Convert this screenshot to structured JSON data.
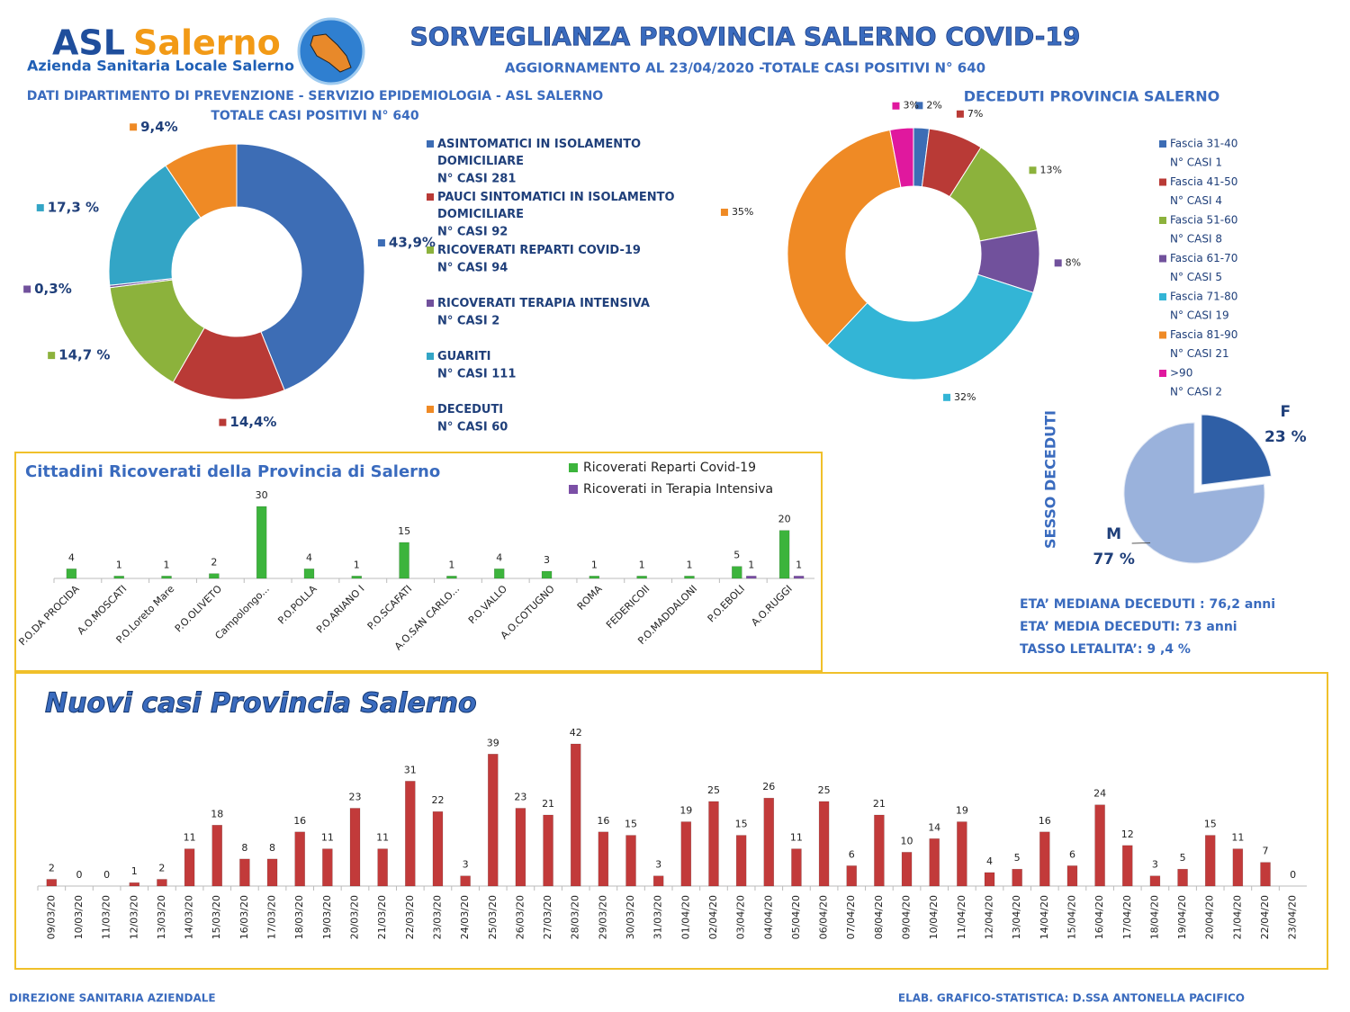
{
  "header": {
    "logo": [
      "ASL",
      "Salerno"
    ],
    "logo_subtitle": "Azienda Sanitaria Locale Salerno",
    "title": "SORVEGLIANZA PROVINCIA SALERNO COVID-19",
    "subtitle": "AGGIORNAMENTO AL 23/04/2020 -TOTALE CASI  POSITIVI N° 640"
  },
  "chart_data": [
    {
      "type": "donut",
      "title": "DATI DIPARTIMENTO DI PREVENZIONE - SERVIZIO EPIDEMIOLOGIA  - ASL SALERNO",
      "subtitle": "TOTALE CASI  POSITIVI N°  640",
      "categories": [
        "ASINTOMATICI  IN ISOLAMENTO DOMICILIARE",
        "PAUCI SINTOMATICI IN ISOLAMENTO DOMICILIARE",
        "RICOVERATI REPARTI COVID-19",
        "RICOVERATI  TERAPIA INTENSIVA",
        "GUARITI",
        "DECEDUTI"
      ],
      "case_labels": [
        "N° CASI 281",
        "N° CASI 92",
        "N° CASI 94",
        "N° CASI 2",
        "N° CASI 111",
        "N° CASI 60"
      ],
      "values": [
        43.9,
        14.4,
        14.7,
        0.3,
        17.3,
        9.4
      ],
      "value_labels": [
        "43,9%",
        "14,4%",
        "14,7 %",
        "0,3%",
        "17,3 %",
        "9,4%"
      ],
      "colors": [
        "#3d6db5",
        "#b93a36",
        "#8cb23c",
        "#71519c",
        "#33a5c6",
        "#ef8a25"
      ]
    },
    {
      "type": "donut",
      "title": "DECEDUTI PROVINCIA SALERNO",
      "categories": [
        "Fascia 31-40",
        "Fascia 41-50",
        "Fascia 51-60",
        "Fascia 61-70",
        "Fascia 71-80",
        "Fascia 81-90",
        ">90"
      ],
      "case_labels": [
        "N° CASI 1",
        "N° CASI  4",
        "N° CASI  8",
        "N° CASI  5",
        "N° CASI  19",
        "N° CASI  21",
        "N° CASI  2"
      ],
      "values": [
        2,
        7,
        13,
        8,
        32,
        35,
        3
      ],
      "value_labels": [
        "2%",
        "7%",
        "13%",
        "8%",
        "32%",
        "35%",
        "3%"
      ],
      "colors": [
        "#3d6db5",
        "#b93a36",
        "#8cb23c",
        "#71519c",
        "#33b5d6",
        "#ef8a25",
        "#e0189e"
      ]
    },
    {
      "type": "pie",
      "title": "SESSO DECEDUTI",
      "categories": [
        "F",
        "M"
      ],
      "values": [
        23,
        77
      ],
      "value_labels": [
        "23 %",
        "77 %"
      ],
      "colors": [
        "#2f5fa6",
        "#9ab2dc"
      ]
    },
    {
      "type": "bar",
      "title": "Cittadini Ricoverati della Provincia di Salerno",
      "categories": [
        "P.O.DA PROCIDA",
        "A.O.MOSCATI",
        "P.O.Loreto Mare",
        "P.O.OLIVETO",
        "Campolongo...",
        "P.O.POLLA",
        "P.O.ARIANO I",
        "P.O.SCAFATI",
        "A.O.SAN CARLO...",
        "P.O.VALLO",
        "A.O.COTUGNO",
        "ROMA",
        "FEDERICOII",
        "P.O.MADDALONI",
        "P.O.EBOLI",
        "A.O.RUGGI"
      ],
      "series": [
        {
          "name": "Ricoverati Reparti Covid-19",
          "color": "#3cb43c",
          "values": [
            4,
            1,
            1,
            2,
            30,
            4,
            1,
            15,
            1,
            4,
            3,
            1,
            1,
            1,
            5,
            20
          ]
        },
        {
          "name": "Ricoverati in Terapia Intensiva",
          "color": "#7b4fa6",
          "values": [
            null,
            null,
            null,
            null,
            null,
            null,
            null,
            null,
            null,
            null,
            null,
            null,
            null,
            null,
            1,
            1
          ]
        }
      ]
    },
    {
      "type": "bar",
      "title": "Nuovi casi Provincia Salerno",
      "color": "#c23a3a",
      "categories": [
        "09/03/20",
        "10/03/20",
        "11/03/20",
        "12/03/20",
        "13/03/20",
        "14/03/20",
        "15/03/20",
        "16/03/20",
        "17/03/20",
        "18/03/20",
        "19/03/20",
        "20/03/20",
        "21/03/20",
        "22/03/20",
        "23/03/20",
        "24/03/20",
        "25/03/20",
        "26/03/20",
        "27/03/20",
        "28/03/20",
        "29/03/20",
        "30/03/20",
        "31/03/20",
        "01/04/20",
        "02/04/20",
        "03/04/20",
        "04/04/20",
        "05/04/20",
        "06/04/20",
        "07/04/20",
        "08/04/20",
        "09/04/20",
        "10/04/20",
        "11/04/20",
        "12/04/20",
        "13/04/20",
        "14/04/20",
        "15/04/20",
        "16/04/20",
        "17/04/20",
        "18/04/20",
        "19/04/20",
        "20/04/20",
        "21/04/20",
        "22/04/20",
        "23/04/20"
      ],
      "values": [
        2,
        0,
        0,
        1,
        2,
        11,
        18,
        8,
        8,
        16,
        11,
        23,
        11,
        31,
        22,
        3,
        39,
        23,
        21,
        42,
        16,
        15,
        3,
        19,
        25,
        15,
        26,
        11,
        25,
        6,
        21,
        10,
        14,
        19,
        4,
        5,
        16,
        6,
        24,
        12,
        3,
        5,
        15,
        11,
        7,
        0
      ]
    }
  ],
  "stats": [
    "ETA’ MEDIANA DECEDUTI :  76,2 anni",
    "ETA’ MEDIA DECEDUTI:  73 anni",
    "TASSO LETALITA’:  9 ,4 %"
  ],
  "footer": [
    "DIREZIONE SANITARIA AZIENDALE",
    "ELAB. GRAFICO-STATISTICA: D.SSA ANTONELLA PACIFICO"
  ]
}
